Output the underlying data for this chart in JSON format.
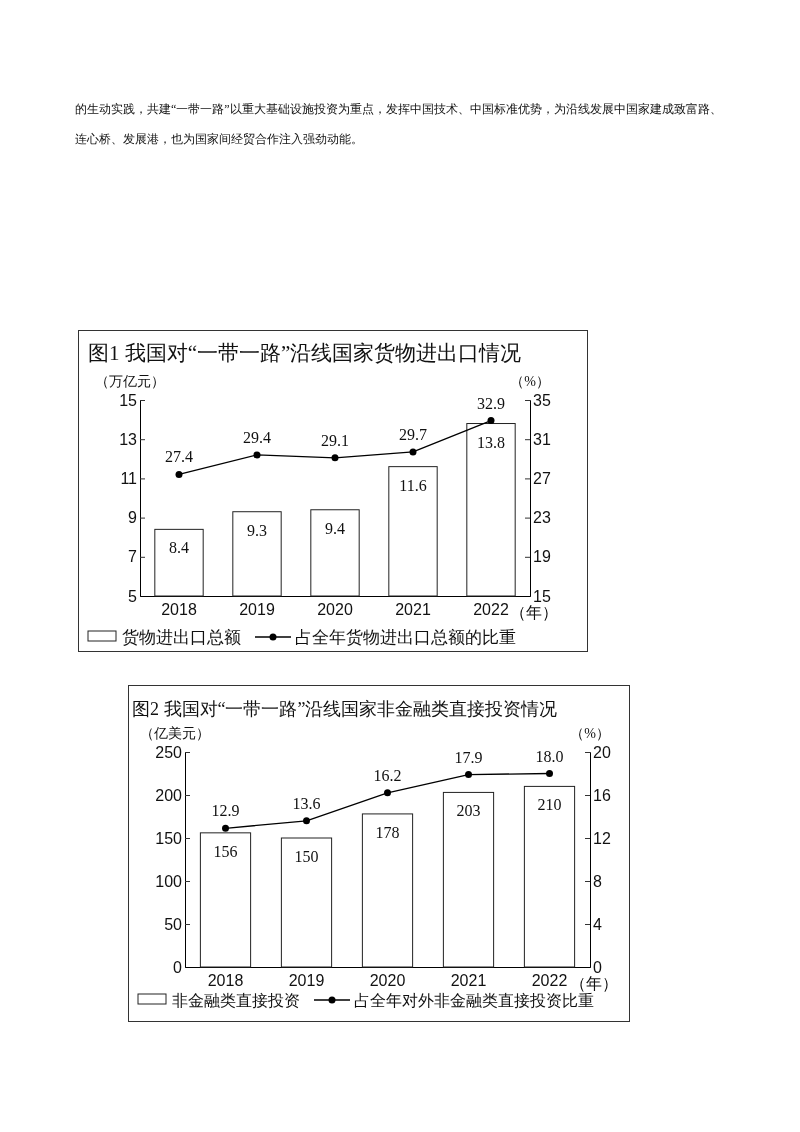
{
  "chart_data": [
    {
      "type": "bar",
      "title": "图1 我国对“一带一路”沿线国家货物进出口情况",
      "ylabel": "（万亿元）",
      "y2label": "（%）",
      "xlabel": "（年）",
      "annotations": [
        "的生动实践，共建“一带一路”以重大基础设施投资为重点，发挥中国技术、中国标准优势，为沿线发展中国家建成致富路、连心桥、发展港，也为国家间经贸合作注入强劲动能。"
      ],
      "categories": [
        "2018",
        "2019",
        "2020",
        "2021",
        "2022"
      ],
      "series": [
        {
          "name": "货物进出口总额",
          "color": "#ffffff",
          "values": [
            8.4,
            9.3,
            9.4,
            11.6,
            13.8
          ],
          "value_labels": [
            "8.4",
            "9.3",
            "9.4",
            "11.6",
            "13.8"
          ]
        },
        {
          "name": "占全年货物进出口总额的比重",
          "type": "line",
          "axis": "y2",
          "color": "#000000",
          "values": [
            27.4,
            29.4,
            29.1,
            29.7,
            32.9
          ],
          "value_labels": [
            "27.4",
            "29.4",
            "29.1",
            "29.7",
            "32.9"
          ]
        }
      ],
      "ylim": [
        5,
        15
      ],
      "yticks": [
        5,
        7,
        9,
        11,
        13,
        15
      ],
      "y2lim": [
        15,
        35
      ],
      "y2ticks": [
        15,
        19,
        23,
        27,
        31,
        35
      ],
      "legend": "bottom",
      "marker": "circle",
      "line_style": "solid"
    },
    {
      "type": "bar",
      "title": "图2 我国对“一带一路”沿线国家非金融类直接投资情况",
      "ylabel": "（亿美元）",
      "y2label": "（%）",
      "xlabel": "（年）",
      "categories": [
        "2018",
        "2019",
        "2020",
        "2021",
        "2022"
      ],
      "series": [
        {
          "name": "非金融类直接投资",
          "color": "#ffffff",
          "values": [
            156,
            150,
            178,
            203,
            210
          ],
          "value_labels": [
            "156",
            "150",
            "178",
            "203",
            "210"
          ]
        },
        {
          "name": "占全年对外非金融类直接投资比重",
          "type": "line",
          "axis": "y2",
          "color": "#000000",
          "values": [
            12.9,
            13.6,
            16.2,
            17.9,
            18.0
          ],
          "value_labels": [
            "12.9",
            "13.6",
            "16.2",
            "17.9",
            "18.0"
          ]
        }
      ],
      "ylim": [
        0,
        250
      ],
      "yticks": [
        0,
        50,
        100,
        150,
        200,
        250
      ],
      "y2lim": [
        0,
        20
      ],
      "y2ticks": [
        0,
        4,
        8,
        12,
        16,
        20
      ],
      "legend": "bottom",
      "marker": "circle",
      "line_style": "solid"
    }
  ]
}
